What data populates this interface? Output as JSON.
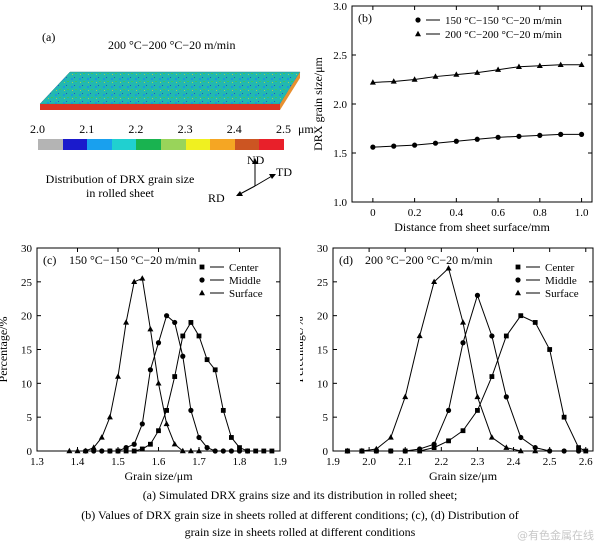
{
  "panel_a": {
    "label": "(a)",
    "title": "200 °C−200 °C−20 m/min",
    "colorbar": {
      "ticks": [
        "2.0",
        "2.1",
        "2.2",
        "2.3",
        "2.4",
        "2.5"
      ],
      "unit": "μm",
      "colors": [
        "#b4b4b4",
        "#1a1acc",
        "#19a0ee",
        "#20d0d0",
        "#19b350",
        "#99d45a",
        "#f0f020",
        "#f5a623",
        "#cc5522",
        "#e8202a"
      ]
    },
    "description_line1": "Distribution of DRX grain size",
    "description_line2": "in rolled sheet",
    "axes": {
      "nd": "ND",
      "td": "TD",
      "rd": "RD"
    }
  },
  "chart_data": [
    {
      "panel": "(b)",
      "type": "line",
      "xlabel": "Distance from sheet surface/mm",
      "ylabel": "DRX grain size/μm",
      "xlim": [
        -0.1,
        1.05
      ],
      "ylim": [
        1.0,
        3.0
      ],
      "xticks": [
        "0",
        "0.2",
        "0.4",
        "0.6",
        "0.8",
        "1.0"
      ],
      "yticks": [
        "1.0",
        "1.5",
        "2.0",
        "2.5",
        "3.0"
      ],
      "legend_position": "top-right",
      "series": [
        {
          "name": "150 °C−150 °C−20 m/min",
          "marker": "circle",
          "x": [
            0,
            0.1,
            0.2,
            0.3,
            0.4,
            0.5,
            0.6,
            0.7,
            0.8,
            0.9,
            1.0
          ],
          "y": [
            1.56,
            1.57,
            1.58,
            1.6,
            1.62,
            1.64,
            1.66,
            1.67,
            1.68,
            1.69,
            1.69
          ]
        },
        {
          "name": "200 °C−200 °C−20 m/min",
          "marker": "triangle",
          "x": [
            0,
            0.1,
            0.2,
            0.3,
            0.4,
            0.5,
            0.6,
            0.7,
            0.8,
            0.9,
            1.0
          ],
          "y": [
            2.22,
            2.23,
            2.25,
            2.28,
            2.3,
            2.32,
            2.35,
            2.38,
            2.39,
            2.4,
            2.4
          ]
        }
      ]
    },
    {
      "panel": "(c)",
      "type": "line",
      "title": "150 °C−150 °C−20 m/min",
      "xlabel": "Grain size/μm",
      "ylabel": "Percentage/%",
      "xlim": [
        1.3,
        1.9
      ],
      "ylim": [
        0,
        30
      ],
      "xticks": [
        "1.3",
        "1.4",
        "1.5",
        "1.6",
        "1.7",
        "1.8",
        "1.9"
      ],
      "yticks": [
        "0",
        "5",
        "10",
        "15",
        "20",
        "25",
        "30"
      ],
      "legend_position": "top-right",
      "series": [
        {
          "name": "Center",
          "marker": "square",
          "x": [
            1.48,
            1.5,
            1.52,
            1.54,
            1.56,
            1.58,
            1.6,
            1.62,
            1.64,
            1.66,
            1.68,
            1.7,
            1.72,
            1.74,
            1.76,
            1.78,
            1.8,
            1.82,
            1.84,
            1.86,
            1.88
          ],
          "y": [
            0,
            0,
            0,
            0,
            0.3,
            1,
            3,
            6,
            11,
            17,
            19,
            17,
            13.5,
            12,
            6,
            2,
            0.5,
            0,
            0,
            0,
            0
          ]
        },
        {
          "name": "Middle",
          "marker": "circle",
          "x": [
            1.42,
            1.44,
            1.46,
            1.48,
            1.5,
            1.52,
            1.54,
            1.56,
            1.58,
            1.6,
            1.62,
            1.64,
            1.66,
            1.68,
            1.7,
            1.72,
            1.74,
            1.76,
            1.78,
            1.8,
            1.82
          ],
          "y": [
            0,
            0,
            0,
            0,
            0,
            0.5,
            1,
            4,
            12,
            16,
            20,
            19,
            14,
            6,
            2,
            0.5,
            0,
            0,
            0,
            0,
            0
          ]
        },
        {
          "name": "Surface",
          "marker": "triangle",
          "x": [
            1.38,
            1.4,
            1.42,
            1.44,
            1.46,
            1.48,
            1.5,
            1.52,
            1.54,
            1.56,
            1.58,
            1.6,
            1.62,
            1.64,
            1.66,
            1.68,
            1.7
          ],
          "y": [
            0,
            0,
            0,
            0.5,
            2,
            5,
            11,
            19,
            25,
            25.5,
            18,
            10,
            4,
            1,
            0,
            0,
            0
          ]
        }
      ]
    },
    {
      "panel": "(d)",
      "type": "line",
      "title": "200 °C−200 °C−20 m/min",
      "xlabel": "Grain size/μm",
      "ylabel": "Percentage/%",
      "xlim": [
        1.9,
        2.62
      ],
      "ylim": [
        0,
        30
      ],
      "xticks": [
        "1.9",
        "2.0",
        "2.1",
        "2.2",
        "2.3",
        "2.4",
        "2.5",
        "2.6"
      ],
      "yticks": [
        "0",
        "5",
        "10",
        "15",
        "20",
        "25",
        "30"
      ],
      "legend_position": "top-right",
      "series": [
        {
          "name": "Center",
          "marker": "square",
          "x": [
            1.94,
            1.98,
            2.02,
            2.06,
            2.1,
            2.14,
            2.18,
            2.22,
            2.26,
            2.3,
            2.34,
            2.38,
            2.42,
            2.46,
            2.5,
            2.54,
            2.58,
            2.6
          ],
          "y": [
            0,
            0,
            0,
            0,
            0,
            0,
            0.5,
            1.5,
            3,
            6,
            11,
            17,
            20,
            19,
            15,
            5,
            0.5,
            0
          ]
        },
        {
          "name": "Middle",
          "marker": "circle",
          "x": [
            1.94,
            1.98,
            2.02,
            2.06,
            2.1,
            2.14,
            2.18,
            2.22,
            2.26,
            2.3,
            2.34,
            2.38,
            2.42,
            2.46,
            2.5,
            2.54,
            2.58
          ],
          "y": [
            0,
            0,
            0,
            0,
            0,
            0.3,
            1,
            6,
            16,
            23,
            17,
            8,
            2,
            0.5,
            0,
            0,
            0
          ]
        },
        {
          "name": "Surface",
          "marker": "triangle",
          "x": [
            1.94,
            1.98,
            2.02,
            2.06,
            2.1,
            2.14,
            2.18,
            2.22,
            2.26,
            2.3,
            2.34,
            2.38,
            2.42,
            2.46
          ],
          "y": [
            0,
            0,
            0.3,
            2,
            8,
            17,
            25,
            27,
            19,
            8,
            2,
            0.5,
            0,
            0
          ]
        }
      ]
    }
  ],
  "caption": {
    "line1": "(a) Simulated DRX grains size and its distribution in rolled sheet;",
    "line2": "(b) Values of DRX grain size in sheets rolled at different conditions; (c), (d) Distribution of",
    "line3": "grain size in sheets rolled at different conditions"
  },
  "watermark": "@有色金属在线"
}
